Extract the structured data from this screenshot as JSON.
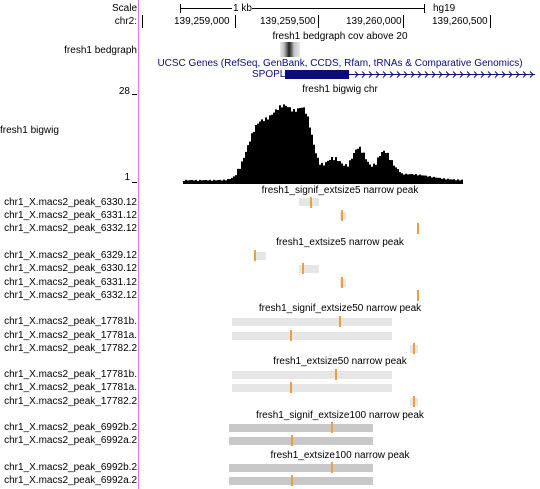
{
  "ruler": {
    "scale_label": "Scale",
    "chrom_label": "chr2:",
    "scale_bar_label": "1 kb",
    "assembly": "hg19",
    "positions": [
      "139,259,000",
      "139,259,500",
      "139,260,000",
      "139,260,500"
    ]
  },
  "tracks": {
    "bedgraph": {
      "label": "fresh1 bedgraph",
      "title": "fresh1 bedgraph cov above 20"
    },
    "genes": {
      "title": "UCSC Genes (RefSeq, GenBank, CCDS, Rfam, tRNAs & Comparative Genomics)",
      "gene_name": "SPOPL"
    },
    "bigwig": {
      "label": "fresh1 bigwig",
      "title": "fresh1 bigwig chr",
      "max_label": "28",
      "min_label": "1"
    }
  },
  "peak_groups": [
    {
      "title": "fresh1_signif_extsize5 narrow peak",
      "rows": [
        "12.chr1_X.macs2_peak_6330",
        "12.chr1_X.macs2_peak_6331",
        "12.chr1_X.macs2_peak_6332"
      ]
    },
    {
      "title": "fresh1_extsize5 narrow peak",
      "rows": [
        "12.chr1_X.macs2_peak_6329",
        "12.chr1_X.macs2_peak_6330",
        "12.chr1_X.macs2_peak_6331",
        "12.chr1_X.macs2_peak_6332"
      ]
    },
    {
      "title": "fresh1_signif_extsize50 narrow peak",
      "rows": [
        ".chr1_X.macs2_peak_17781b",
        ".chr1_X.macs2_peak_17781a",
        "2.chr1_X.macs2_peak_17782"
      ]
    },
    {
      "title": "fresh1_extsize50 narrow peak",
      "rows": [
        ".chr1_X.macs2_peak_17781b",
        ".chr1_X.macs2_peak_17781a",
        "2.chr1_X.macs2_peak_17782"
      ]
    },
    {
      "title": "fresh1_signif_extsize100 narrow peak",
      "rows": [
        "2.chr1_X.macs2_peak_6992b",
        "2.chr1_X.macs2_peak_6992a"
      ]
    },
    {
      "title": "fresh1_extsize100 narrow peak",
      "rows": [
        "2.chr1_X.macs2_peak_6992b",
        "2.chr1_X.macs2_peak_6992a"
      ]
    }
  ],
  "colors": {
    "divider": "#e07ad8",
    "gene": "#0c0c78",
    "signal": "#000000",
    "peak_summit": "#e8a040",
    "peak_light": "#e6e6e6",
    "peak_dark": "#c8c8c8"
  }
}
